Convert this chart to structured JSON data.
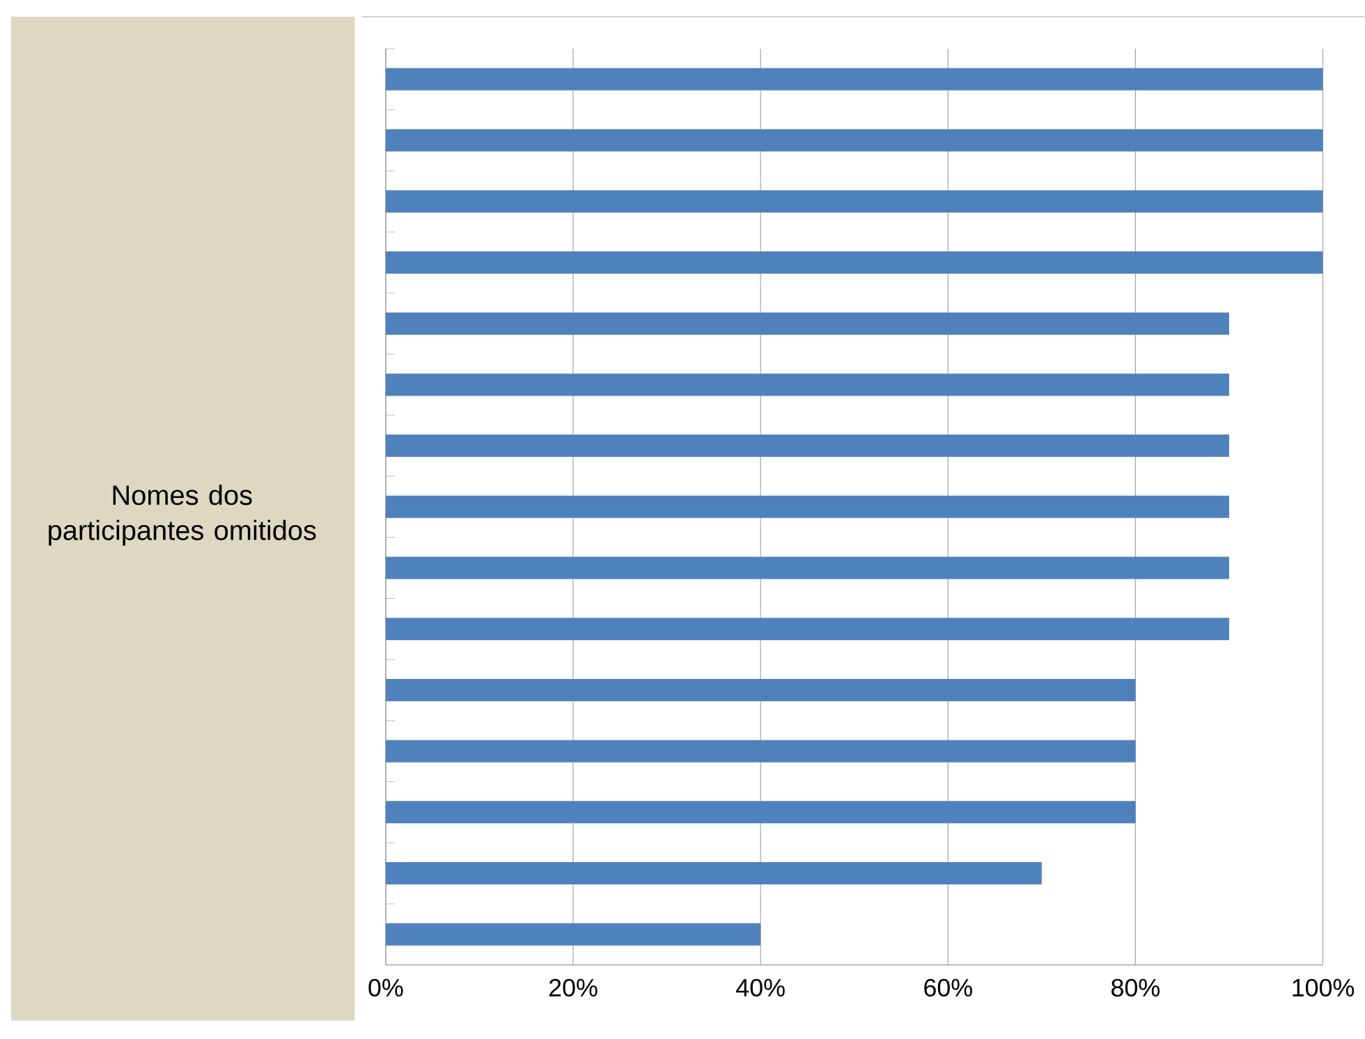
{
  "chart_data": {
    "type": "bar",
    "orientation": "horizontal",
    "color": "#4f81bd",
    "categories": [
      null,
      null,
      null,
      null,
      null,
      null,
      null,
      null,
      null,
      null,
      null,
      null,
      null,
      null,
      null
    ],
    "values": [
      100,
      100,
      100,
      100,
      90,
      90,
      90,
      90,
      90,
      90,
      80,
      80,
      80,
      70,
      40
    ],
    "xlim": [
      0,
      100
    ],
    "xticks": [
      {
        "value": 0,
        "label": "0%"
      },
      {
        "value": 20,
        "label": "20%"
      },
      {
        "value": 40,
        "label": "40%"
      },
      {
        "value": 60,
        "label": "60%"
      },
      {
        "value": 80,
        "label": "80%"
      },
      {
        "value": 100,
        "label": "100%"
      }
    ],
    "grid": "x",
    "annotations": [
      "Nomes dos participantes omitidos"
    ]
  }
}
